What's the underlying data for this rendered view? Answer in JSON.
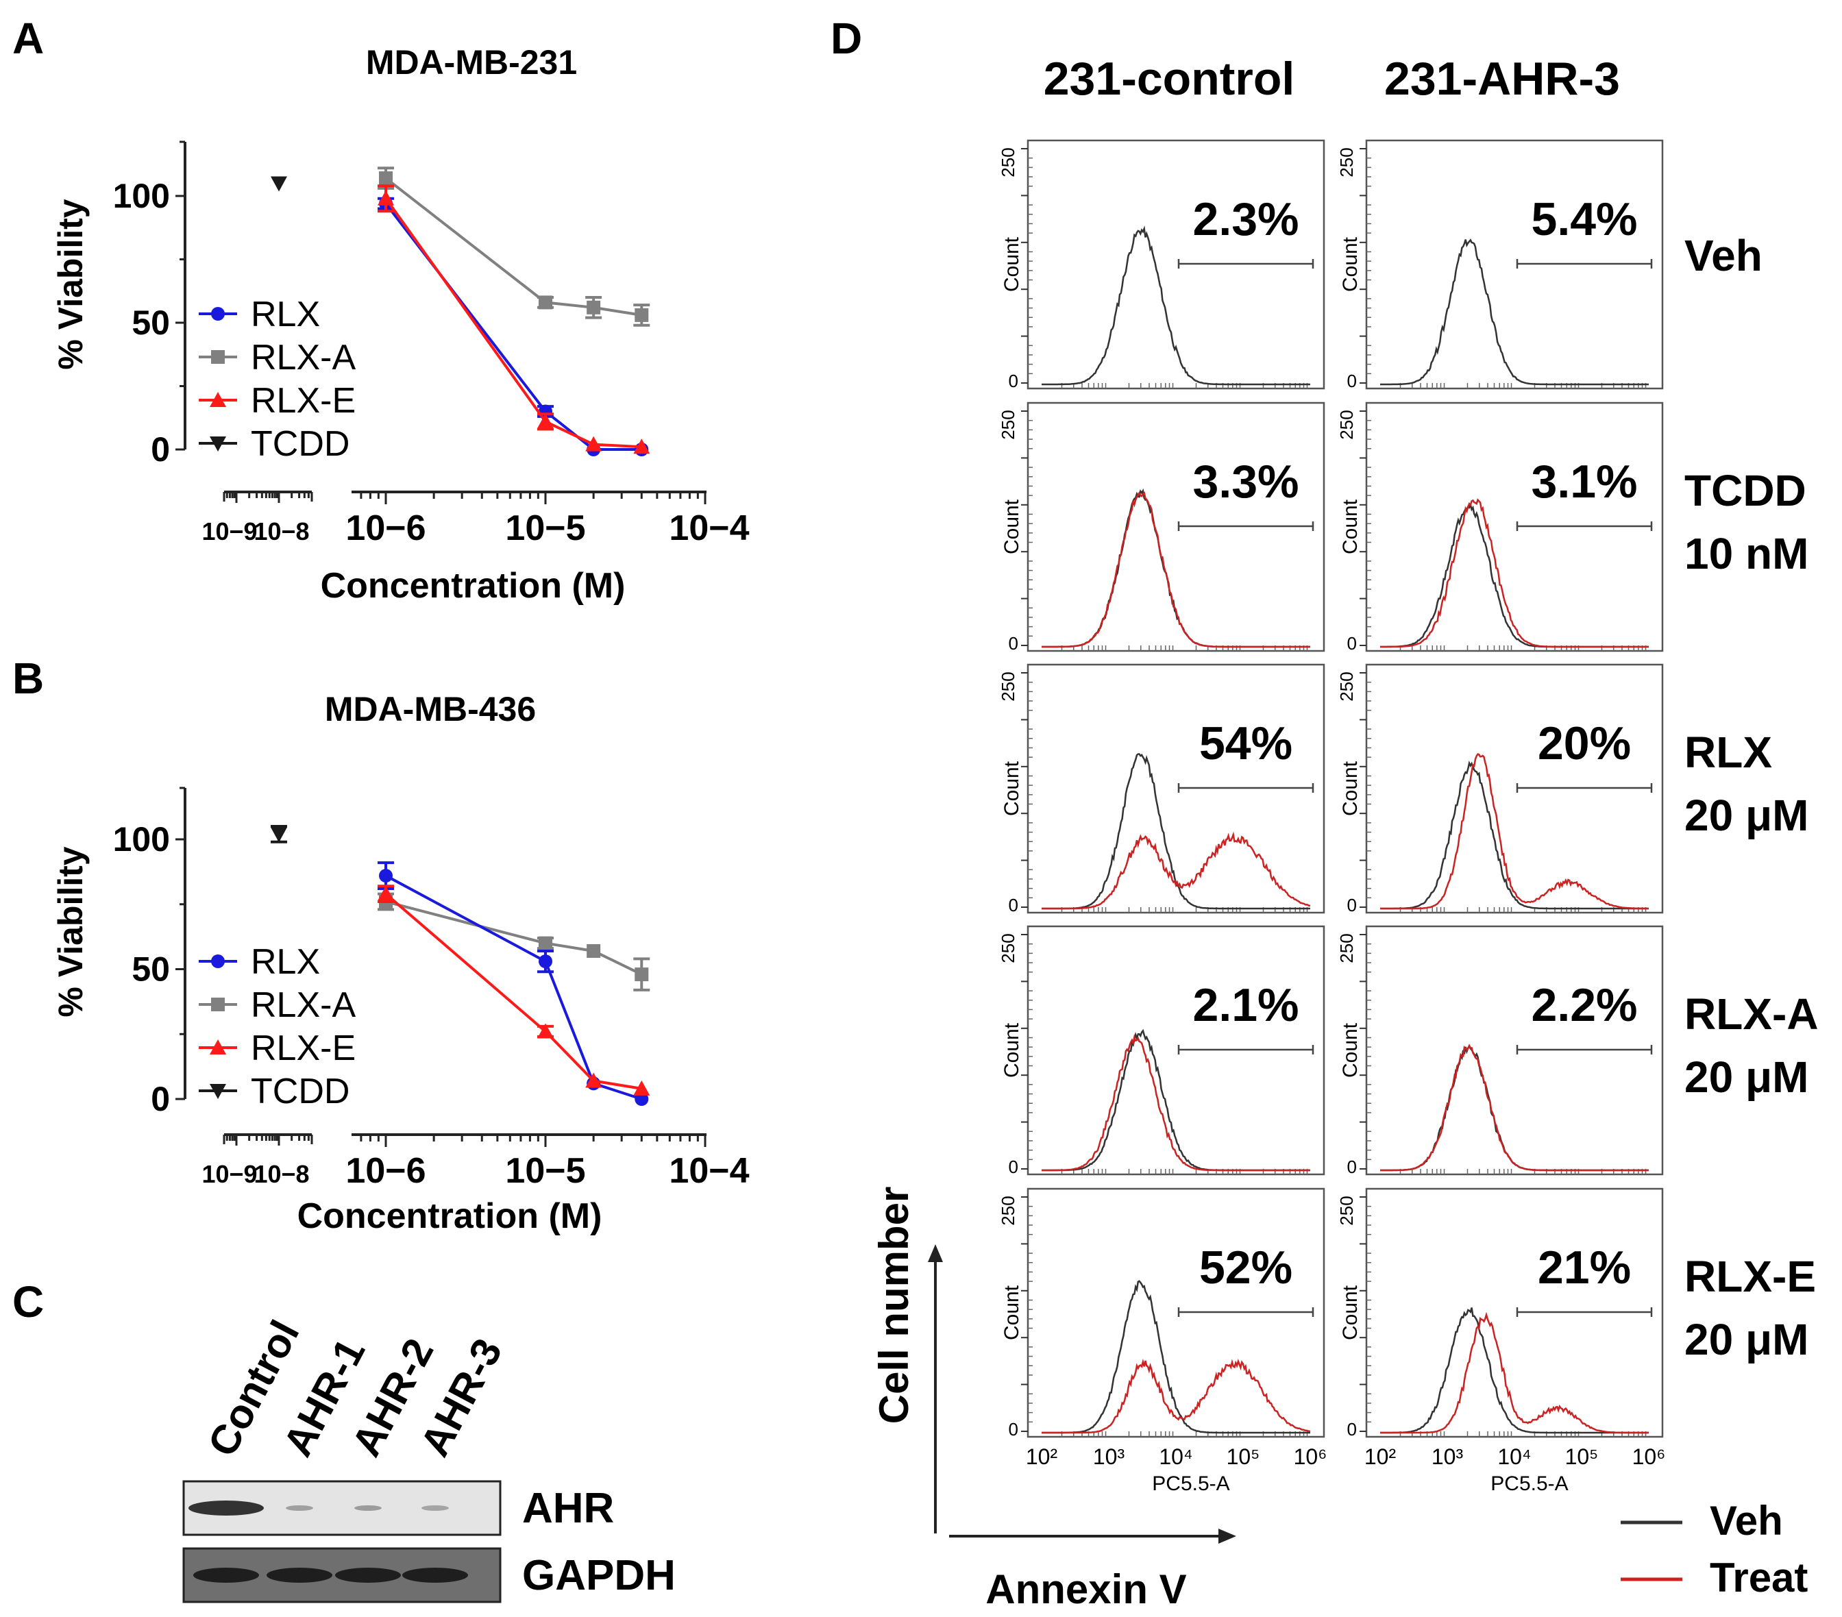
{
  "panels": {
    "A": "A",
    "B": "B",
    "C": "C",
    "D": "D"
  },
  "chart_data": [
    {
      "id": "A",
      "type": "line",
      "title": "MDA-MB-231",
      "ylabel": "% Viability",
      "xlabel": "Concentration (M)",
      "xscale": "log",
      "ylim": [
        0,
        120
      ],
      "yticks": [
        "0",
        "50",
        "100"
      ],
      "xticks": [
        "10−9",
        "10−8",
        "10−6",
        "10−5",
        "10−4"
      ],
      "legend": "left",
      "series": [
        {
          "name": "RLX",
          "color": "#1a1adf",
          "marker": "circle",
          "x": [
            1e-06,
            1e-05,
            2e-05,
            4e-05
          ],
          "y": [
            97,
            15,
            0,
            0
          ],
          "err": [
            2,
            2,
            1,
            1
          ]
        },
        {
          "name": "RLX-A",
          "color": "#808080",
          "marker": "square",
          "x": [
            1e-06,
            1e-05,
            2e-05,
            4e-05
          ],
          "y": [
            107,
            58,
            56,
            53
          ],
          "err": [
            4,
            2,
            4,
            4
          ]
        },
        {
          "name": "RLX-E",
          "color": "#ff1a1a",
          "marker": "triangle",
          "x": [
            1e-06,
            1e-05,
            2e-05,
            4e-05
          ],
          "y": [
            99,
            11,
            2,
            1
          ],
          "err": [
            5,
            3,
            1,
            1
          ]
        },
        {
          "name": "TCDD",
          "color": "#1a1a1a",
          "marker": "triangle-down",
          "x": [
            1e-08
          ],
          "y": [
            105
          ],
          "err": [
            1
          ]
        }
      ]
    },
    {
      "id": "B",
      "type": "line",
      "title": "MDA-MB-436",
      "ylabel": "% Viability",
      "xlabel": "Concentration (M)",
      "xscale": "log",
      "ylim": [
        0,
        120
      ],
      "yticks": [
        "0",
        "50",
        "100"
      ],
      "xticks": [
        "10−9",
        "10−8",
        "10−6",
        "10−5",
        "10−4"
      ],
      "legend": "left",
      "series": [
        {
          "name": "RLX",
          "color": "#1a1adf",
          "marker": "circle",
          "x": [
            1e-06,
            1e-05,
            2e-05,
            4e-05
          ],
          "y": [
            86,
            53,
            6,
            0
          ],
          "err": [
            5,
            4,
            1,
            1
          ]
        },
        {
          "name": "RLX-A",
          "color": "#808080",
          "marker": "square",
          "x": [
            1e-06,
            1e-05,
            2e-05,
            4e-05
          ],
          "y": [
            76,
            60,
            57,
            48
          ],
          "err": [
            3,
            2,
            1,
            6
          ]
        },
        {
          "name": "RLX-E",
          "color": "#ff1a1a",
          "marker": "triangle",
          "x": [
            1e-06,
            1e-05,
            2e-05,
            4e-05
          ],
          "y": [
            79,
            26,
            7,
            4
          ],
          "err": [
            3,
            2,
            1,
            1
          ]
        },
        {
          "name": "TCDD",
          "color": "#1a1a1a",
          "marker": "triangle-down",
          "x": [
            1e-08
          ],
          "y": [
            102
          ],
          "err": [
            3
          ]
        }
      ]
    }
  ],
  "blot": {
    "lanes": [
      "Control",
      "AHR-1",
      "AHR-2",
      "AHR-3"
    ],
    "rows": [
      {
        "label": "AHR",
        "intensity": [
          1.0,
          0.15,
          0.2,
          0.12
        ]
      },
      {
        "label": "GAPDH",
        "intensity": [
          1.0,
          1.0,
          1.0,
          1.0
        ]
      }
    ]
  },
  "flow": {
    "columns": [
      "231-control",
      "231-AHR-3"
    ],
    "rows": [
      {
        "label1": "Veh",
        "label2": "",
        "pct": [
          "2.3%",
          "5.4%"
        ],
        "treated": false
      },
      {
        "label1": "TCDD",
        "label2": "10 nM",
        "pct": [
          "3.3%",
          "3.1%"
        ],
        "treated": true
      },
      {
        "label1": "RLX",
        "label2": "20 μM",
        "pct": [
          "54%",
          "20%"
        ],
        "treated": true
      },
      {
        "label1": "RLX-A",
        "label2": "20 μM",
        "pct": [
          "2.1%",
          "2.2%"
        ],
        "treated": true
      },
      {
        "label1": "RLX-E",
        "label2": "20 μM",
        "pct": [
          "52%",
          "21%"
        ],
        "treated": true
      }
    ],
    "ylabel": "Count",
    "ytick_top": "250",
    "ytick_zero": "0",
    "xlabel": "PC5.5-A",
    "xticks": [
      "10²",
      "10³",
      "10⁴",
      "10⁵",
      "10⁶"
    ],
    "axis_y": "Cell number",
    "axis_x": "Annexin V",
    "legend": [
      {
        "name": "Veh",
        "color": "#333333"
      },
      {
        "name": "Treat",
        "color": "#cc2222"
      }
    ]
  }
}
